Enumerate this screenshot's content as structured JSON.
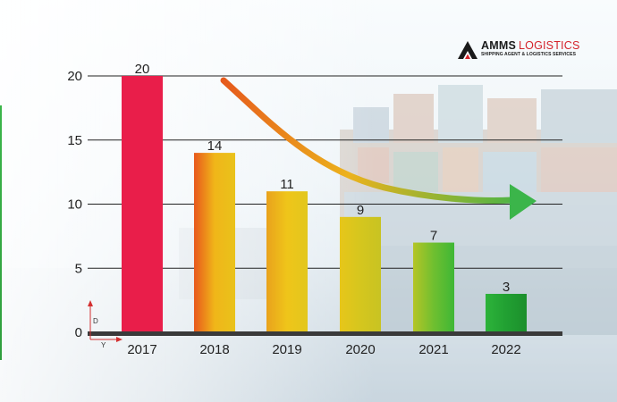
{
  "logo": {
    "brand": "AMMS",
    "brand_suffix": "LOGISTICS",
    "tagline": "SHIPPING AGENT & LOGISTICS SERVICES"
  },
  "axis_indicator": {
    "vertical_label": "D",
    "horizontal_label": "Y"
  },
  "colors": {
    "bar_2017": "#e91e4a",
    "gradient_orange": "#e8581c",
    "gradient_yellow": "#f0c419",
    "gradient_green": "#21a032",
    "arrow_start": "#e65a1c",
    "arrow_end": "#3bb54a",
    "gridline": "#222222"
  },
  "chart_data": {
    "type": "bar",
    "title": "",
    "xlabel": "",
    "ylabel": "",
    "categories": [
      "2017",
      "2018",
      "2019",
      "2020",
      "2021",
      "2022"
    ],
    "values": [
      20,
      14,
      11,
      9,
      7,
      3
    ],
    "ylim": [
      0,
      20
    ],
    "yticks": [
      0,
      5,
      10,
      15,
      20
    ],
    "grid": true,
    "data_labels": true,
    "annotation": "downward trend arrow from top of 2018 toward 2022"
  }
}
